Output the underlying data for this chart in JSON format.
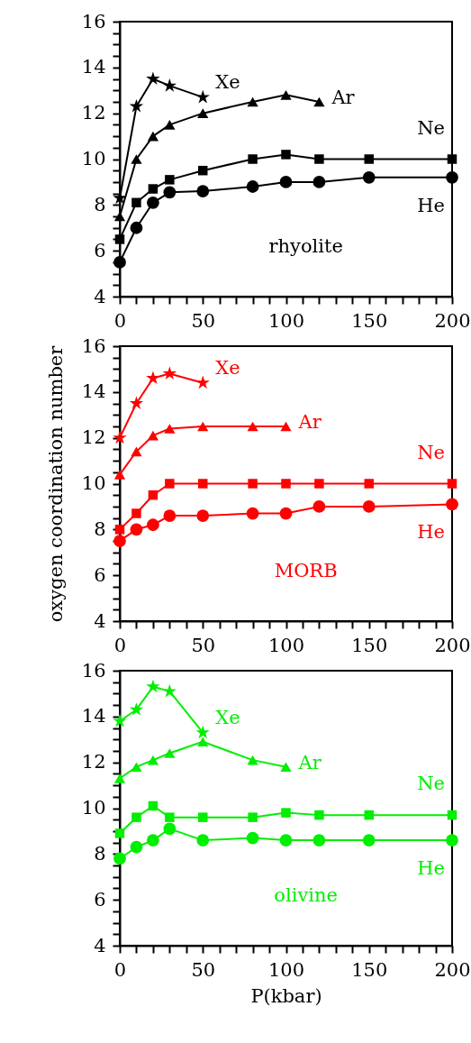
{
  "chart_data": [
    {
      "type": "line",
      "annotations": [
        "rhyolite"
      ],
      "xlim": [
        0,
        200
      ],
      "ylim": [
        4,
        16
      ],
      "xticks": [
        0,
        {
          "value": 10,
          "label": null
        },
        {
          "value": 20,
          "label": null
        },
        {
          "value": 30,
          "label": null
        },
        {
          "value": 40,
          "label": null
        },
        50,
        {
          "value": 60,
          "label": null
        },
        {
          "value": 70,
          "label": null
        },
        {
          "value": 80,
          "label": null
        },
        {
          "value": 90,
          "label": null
        },
        100,
        {
          "value": 110,
          "label": null
        },
        {
          "value": 120,
          "label": null
        },
        {
          "value": 130,
          "label": null
        },
        {
          "value": 140,
          "label": null
        },
        150,
        {
          "value": 160,
          "label": null
        },
        {
          "value": 170,
          "label": null
        },
        {
          "value": 180,
          "label": null
        },
        {
          "value": 190,
          "label": null
        },
        200
      ],
      "yticks": [
        4,
        {
          "value": 4.5,
          "label": null
        },
        {
          "value": 5,
          "label": null
        },
        {
          "value": 5.5,
          "label": null
        },
        6,
        {
          "value": 6.5,
          "label": null
        },
        {
          "value": 7,
          "label": null
        },
        {
          "value": 7.5,
          "label": null
        },
        8,
        {
          "value": 8.5,
          "label": null
        },
        {
          "value": 9,
          "label": null
        },
        {
          "value": 9.5,
          "label": null
        },
        10,
        {
          "value": 10.5,
          "label": null
        },
        {
          "value": 11,
          "label": null
        },
        {
          "value": 11.5,
          "label": null
        },
        12,
        {
          "value": 12.5,
          "label": null
        },
        {
          "value": 13,
          "label": null
        },
        {
          "value": 13.5,
          "label": null
        },
        14,
        {
          "value": 14.5,
          "label": null
        },
        {
          "value": 15,
          "label": null
        },
        {
          "value": 15.5,
          "label": null
        },
        16
      ],
      "series": [
        {
          "name": "Xe",
          "color": "#000000",
          "marker": "star",
          "x": [
            0,
            10,
            20,
            30,
            50
          ],
          "values": [
            8.3,
            12.3,
            13.5,
            13.2,
            12.7
          ]
        },
        {
          "name": "Ar",
          "color": "#000000",
          "marker": "triangle",
          "x": [
            0,
            10,
            20,
            30,
            50,
            80,
            100,
            120
          ],
          "values": [
            7.5,
            10.0,
            11.0,
            11.5,
            12.0,
            12.5,
            12.8,
            12.5
          ]
        },
        {
          "name": "Ne",
          "color": "#000000",
          "marker": "square",
          "x": [
            0,
            10,
            20,
            30,
            50,
            80,
            100,
            120,
            150,
            200
          ],
          "values": [
            6.5,
            8.1,
            8.7,
            9.1,
            9.5,
            10.0,
            10.2,
            10.0,
            10.0,
            10.0
          ]
        },
        {
          "name": "He",
          "color": "#000000",
          "marker": "circle",
          "x": [
            0,
            10,
            20,
            30,
            50,
            80,
            100,
            120,
            150,
            200
          ],
          "values": [
            5.5,
            7.0,
            8.1,
            8.55,
            8.6,
            8.8,
            9.0,
            9.0,
            9.2,
            9.2
          ]
        }
      ]
    },
    {
      "type": "line",
      "ylabel": "oxygen coordination number",
      "annotations": [
        "MORB"
      ],
      "xlim": [
        0,
        200
      ],
      "ylim": [
        4,
        16
      ],
      "xticks": [
        0,
        {
          "value": 10,
          "label": null
        },
        {
          "value": 20,
          "label": null
        },
        {
          "value": 30,
          "label": null
        },
        {
          "value": 40,
          "label": null
        },
        50,
        {
          "value": 60,
          "label": null
        },
        {
          "value": 70,
          "label": null
        },
        {
          "value": 80,
          "label": null
        },
        {
          "value": 90,
          "label": null
        },
        100,
        {
          "value": 110,
          "label": null
        },
        {
          "value": 120,
          "label": null
        },
        {
          "value": 130,
          "label": null
        },
        {
          "value": 140,
          "label": null
        },
        150,
        {
          "value": 160,
          "label": null
        },
        {
          "value": 170,
          "label": null
        },
        {
          "value": 180,
          "label": null
        },
        {
          "value": 190,
          "label": null
        },
        200
      ],
      "yticks": [
        4,
        {
          "value": 4.5,
          "label": null
        },
        {
          "value": 5,
          "label": null
        },
        {
          "value": 5.5,
          "label": null
        },
        6,
        {
          "value": 6.5,
          "label": null
        },
        {
          "value": 7,
          "label": null
        },
        {
          "value": 7.5,
          "label": null
        },
        8,
        {
          "value": 8.5,
          "label": null
        },
        {
          "value": 9,
          "label": null
        },
        {
          "value": 9.5,
          "label": null
        },
        10,
        {
          "value": 10.5,
          "label": null
        },
        {
          "value": 11,
          "label": null
        },
        {
          "value": 11.5,
          "label": null
        },
        12,
        {
          "value": 12.5,
          "label": null
        },
        {
          "value": 13,
          "label": null
        },
        {
          "value": 13.5,
          "label": null
        },
        14,
        {
          "value": 14.5,
          "label": null
        },
        {
          "value": 15,
          "label": null
        },
        {
          "value": 15.5,
          "label": null
        },
        16
      ],
      "series": [
        {
          "name": "Xe",
          "color": "#ff0000",
          "marker": "star",
          "x": [
            0,
            10,
            20,
            30,
            50
          ],
          "values": [
            12.0,
            13.5,
            14.6,
            14.8,
            14.4
          ]
        },
        {
          "name": "Ar",
          "color": "#ff0000",
          "marker": "triangle",
          "x": [
            0,
            10,
            20,
            30,
            50,
            80,
            100
          ],
          "values": [
            10.4,
            11.4,
            12.1,
            12.4,
            12.5,
            12.5,
            12.5
          ]
        },
        {
          "name": "Ne",
          "color": "#ff0000",
          "marker": "square",
          "x": [
            0,
            10,
            20,
            30,
            50,
            80,
            100,
            120,
            150,
            200
          ],
          "values": [
            8.0,
            8.7,
            9.5,
            10.0,
            10.0,
            10.0,
            10.0,
            10.0,
            10.0,
            10.0
          ]
        },
        {
          "name": "He",
          "color": "#ff0000",
          "marker": "circle",
          "x": [
            0,
            10,
            20,
            30,
            50,
            80,
            100,
            120,
            150,
            200
          ],
          "values": [
            7.5,
            8.0,
            8.2,
            8.6,
            8.6,
            8.7,
            8.7,
            9.0,
            9.0,
            9.1
          ]
        }
      ]
    },
    {
      "type": "line",
      "xlabel": "P(kbar)",
      "annotations": [
        "olivine"
      ],
      "xlim": [
        0,
        200
      ],
      "ylim": [
        4,
        16
      ],
      "xticks": [
        0,
        {
          "value": 10,
          "label": null
        },
        {
          "value": 20,
          "label": null
        },
        {
          "value": 30,
          "label": null
        },
        {
          "value": 40,
          "label": null
        },
        50,
        {
          "value": 60,
          "label": null
        },
        {
          "value": 70,
          "label": null
        },
        {
          "value": 80,
          "label": null
        },
        {
          "value": 90,
          "label": null
        },
        100,
        {
          "value": 110,
          "label": null
        },
        {
          "value": 120,
          "label": null
        },
        {
          "value": 130,
          "label": null
        },
        {
          "value": 140,
          "label": null
        },
        150,
        {
          "value": 160,
          "label": null
        },
        {
          "value": 170,
          "label": null
        },
        {
          "value": 180,
          "label": null
        },
        {
          "value": 190,
          "label": null
        },
        200
      ],
      "yticks": [
        4,
        {
          "value": 4.5,
          "label": null
        },
        {
          "value": 5,
          "label": null
        },
        {
          "value": 5.5,
          "label": null
        },
        6,
        {
          "value": 6.5,
          "label": null
        },
        {
          "value": 7,
          "label": null
        },
        {
          "value": 7.5,
          "label": null
        },
        8,
        {
          "value": 8.5,
          "label": null
        },
        {
          "value": 9,
          "label": null
        },
        {
          "value": 9.5,
          "label": null
        },
        10,
        {
          "value": 10.5,
          "label": null
        },
        {
          "value": 11,
          "label": null
        },
        {
          "value": 11.5,
          "label": null
        },
        12,
        {
          "value": 12.5,
          "label": null
        },
        {
          "value": 13,
          "label": null
        },
        {
          "value": 13.5,
          "label": null
        },
        14,
        {
          "value": 14.5,
          "label": null
        },
        {
          "value": 15,
          "label": null
        },
        {
          "value": 15.5,
          "label": null
        },
        16
      ],
      "series": [
        {
          "name": "Xe",
          "color": "#00ee00",
          "marker": "star",
          "x": [
            0,
            10,
            20,
            30,
            50
          ],
          "values": [
            13.8,
            14.3,
            15.3,
            15.1,
            13.3
          ]
        },
        {
          "name": "Ar",
          "color": "#00ee00",
          "marker": "triangle",
          "x": [
            0,
            10,
            20,
            30,
            50,
            80,
            100
          ],
          "values": [
            11.3,
            11.8,
            12.1,
            12.4,
            12.9,
            12.1,
            11.8
          ]
        },
        {
          "name": "Ne",
          "color": "#00ee00",
          "marker": "square",
          "x": [
            0,
            10,
            20,
            30,
            50,
            80,
            100,
            120,
            150,
            200
          ],
          "values": [
            8.9,
            9.6,
            10.1,
            9.6,
            9.6,
            9.6,
            9.8,
            9.7,
            9.7,
            9.7
          ]
        },
        {
          "name": "He",
          "color": "#00ee00",
          "marker": "circle",
          "x": [
            0,
            10,
            20,
            30,
            50,
            80,
            100,
            120,
            150,
            200
          ],
          "values": [
            7.8,
            8.3,
            8.6,
            9.1,
            8.6,
            8.7,
            8.6,
            8.6,
            8.6,
            8.6
          ]
        }
      ]
    }
  ]
}
